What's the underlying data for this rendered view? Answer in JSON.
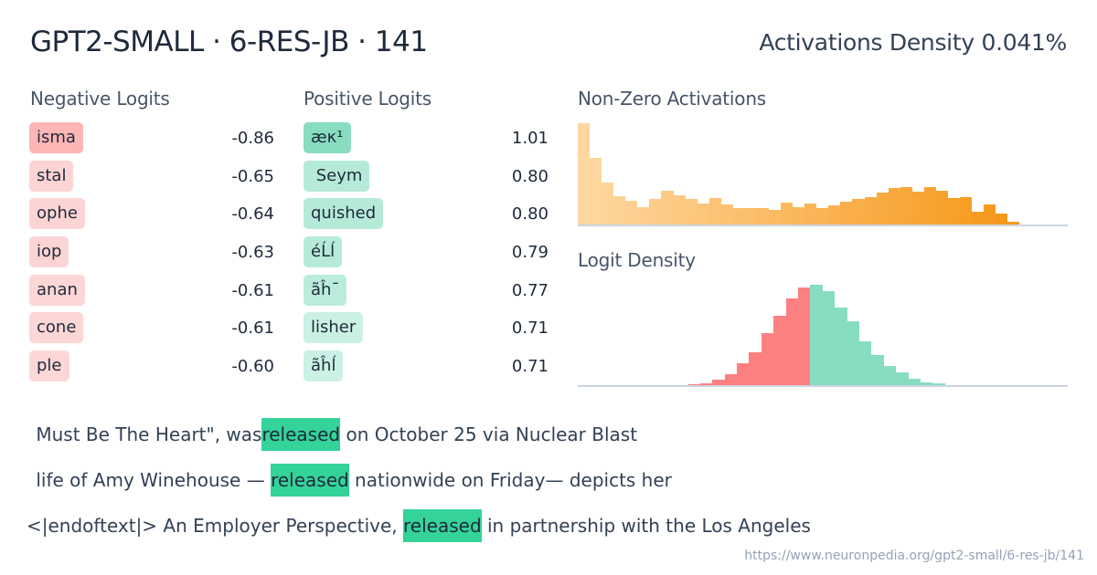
{
  "header": {
    "title": "GPT2-SMALL · 6-RES-JB · 141",
    "density_label": "Activations Density 0.041%"
  },
  "negative_logits": {
    "heading": "Negative Logits",
    "items": [
      {
        "token": "isma",
        "value": "-0.86",
        "color": "#fdb5b5"
      },
      {
        "token": "stal",
        "value": "-0.65",
        "color": "#fdd4d4"
      },
      {
        "token": "ophe",
        "value": "-0.64",
        "color": "#fdd4d4"
      },
      {
        "token": "iop",
        "value": "-0.63",
        "color": "#fdd4d4"
      },
      {
        "token": "anan",
        "value": "-0.61",
        "color": "#fdd6d6"
      },
      {
        "token": "cone",
        "value": "-0.61",
        "color": "#fdd6d6"
      },
      {
        "token": "ple",
        "value": "-0.60",
        "color": "#fdd7d7"
      }
    ]
  },
  "positive_logits": {
    "heading": "Positive Logits",
    "items": [
      {
        "token": "æκ¹",
        "value": "1.01",
        "color": "#88dcc0"
      },
      {
        "token": " Seym",
        "value": "0.80",
        "color": "#b5ead8"
      },
      {
        "token": "quished",
        "value": "0.80",
        "color": "#b5ead8"
      },
      {
        "token": "éĹĺ",
        "value": "0.79",
        "color": "#b7ebd9"
      },
      {
        "token": "ãĥ¯",
        "value": "0.77",
        "color": "#bbecdb"
      },
      {
        "token": "lisher",
        "value": "0.71",
        "color": "#cbf1e4"
      },
      {
        "token": "ãĥĺ",
        "value": "0.71",
        "color": "#cbf1e4"
      }
    ]
  },
  "chart_data": [
    {
      "type": "bar",
      "title": "Non-Zero Activations",
      "xlabel": "",
      "ylabel": "",
      "grid": false,
      "color_start": "#fed7a0",
      "color_end": "#f59008",
      "values": [
        112,
        74,
        47,
        32,
        27,
        20,
        29,
        38,
        33,
        29,
        24,
        30,
        23,
        19,
        19,
        19,
        17,
        25,
        20,
        24,
        19,
        22,
        26,
        29,
        31,
        36,
        41,
        42,
        37,
        42,
        38,
        30,
        31,
        15,
        23,
        13,
        4,
        1,
        1,
        0,
        1
      ]
    },
    {
      "type": "bar",
      "title": "Logit Density",
      "xlabel": "",
      "ylabel": "",
      "grid": false,
      "negative_color": "#fd8080",
      "positive_color": "#87ddbf",
      "negative_values": [
        0,
        0,
        0,
        0,
        0,
        0,
        0,
        1,
        0,
        2,
        3,
        7,
        13,
        25,
        37,
        58,
        77,
        96,
        108
      ],
      "positive_values": [
        111,
        104,
        86,
        71,
        49,
        34,
        22,
        15,
        8,
        4,
        3,
        1
      ]
    }
  ],
  "examples": [
    {
      "before": " Must Be The Heart\", was",
      "highlight": "released",
      "after": " on October 25 via Nuclear Blast"
    },
    {
      "before": " life of Amy Winehouse — ",
      "highlight": "released",
      "after": " nationwide on Friday— depicts her"
    },
    {
      "before": "<|endoftext|> An Employer Perspective, ",
      "highlight": "released",
      "after": " in partnership with the Los Angeles"
    }
  ],
  "footer": {
    "url": "https://www.neuronpedia.org/gpt2-small/6-res-jb/141"
  }
}
